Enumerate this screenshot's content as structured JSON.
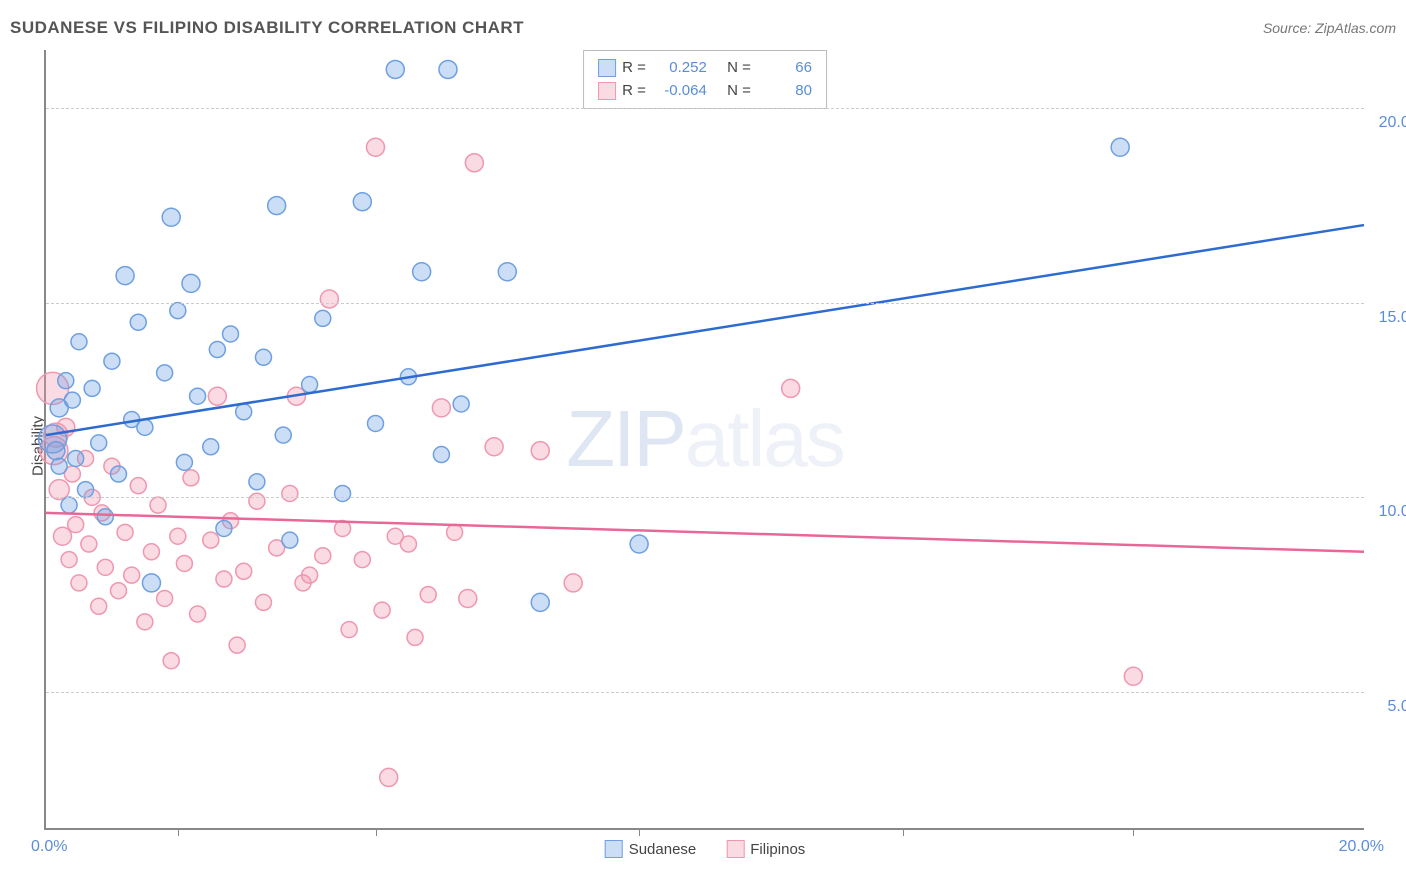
{
  "header": {
    "title": "SUDANESE VS FILIPINO DISABILITY CORRELATION CHART",
    "source_prefix": "Source: ",
    "source": "ZipAtlas.com"
  },
  "watermark": {
    "zip": "ZIP",
    "atlas": "atlas"
  },
  "axes": {
    "ylabel": "Disability",
    "x_min": 0.0,
    "x_max": 20.0,
    "y_min": 1.5,
    "y_max": 21.5,
    "x_origin_label": "0.0%",
    "x_max_label": "20.0%",
    "y_ticks": [
      {
        "v": 5.0,
        "label": "5.0%"
      },
      {
        "v": 10.0,
        "label": "10.0%"
      },
      {
        "v": 15.0,
        "label": "15.0%"
      },
      {
        "v": 20.0,
        "label": "20.0%"
      }
    ],
    "x_tick_positions": [
      2.0,
      5.0,
      9.0,
      13.0,
      16.5
    ],
    "grid_color": "#cccccc"
  },
  "series": {
    "sudanese": {
      "label": "Sudanese",
      "fill": "rgba(110,160,225,0.35)",
      "stroke": "#6ea0e1",
      "line_color": "#2e6bd0",
      "R": "0.252",
      "N": "66",
      "trend": {
        "x1": 0.0,
        "y1": 11.6,
        "x2": 20.0,
        "y2": 17.0
      },
      "points": [
        {
          "x": 0.1,
          "y": 11.5,
          "r": 14
        },
        {
          "x": 0.15,
          "y": 11.2,
          "r": 9
        },
        {
          "x": 0.2,
          "y": 12.3,
          "r": 9
        },
        {
          "x": 0.2,
          "y": 10.8,
          "r": 8
        },
        {
          "x": 0.3,
          "y": 13.0,
          "r": 8
        },
        {
          "x": 0.35,
          "y": 9.8,
          "r": 8
        },
        {
          "x": 0.4,
          "y": 12.5,
          "r": 8
        },
        {
          "x": 0.45,
          "y": 11.0,
          "r": 8
        },
        {
          "x": 0.5,
          "y": 14.0,
          "r": 8
        },
        {
          "x": 0.6,
          "y": 10.2,
          "r": 8
        },
        {
          "x": 0.7,
          "y": 12.8,
          "r": 8
        },
        {
          "x": 0.8,
          "y": 11.4,
          "r": 8
        },
        {
          "x": 0.9,
          "y": 9.5,
          "r": 8
        },
        {
          "x": 1.0,
          "y": 13.5,
          "r": 8
        },
        {
          "x": 1.1,
          "y": 10.6,
          "r": 8
        },
        {
          "x": 1.2,
          "y": 15.7,
          "r": 9
        },
        {
          "x": 1.3,
          "y": 12.0,
          "r": 8
        },
        {
          "x": 1.4,
          "y": 14.5,
          "r": 8
        },
        {
          "x": 1.5,
          "y": 11.8,
          "r": 8
        },
        {
          "x": 1.6,
          "y": 7.8,
          "r": 9
        },
        {
          "x": 1.8,
          "y": 13.2,
          "r": 8
        },
        {
          "x": 1.9,
          "y": 17.2,
          "r": 9
        },
        {
          "x": 2.0,
          "y": 14.8,
          "r": 8
        },
        {
          "x": 2.1,
          "y": 10.9,
          "r": 8
        },
        {
          "x": 2.2,
          "y": 15.5,
          "r": 9
        },
        {
          "x": 2.3,
          "y": 12.6,
          "r": 8
        },
        {
          "x": 2.5,
          "y": 11.3,
          "r": 8
        },
        {
          "x": 2.6,
          "y": 13.8,
          "r": 8
        },
        {
          "x": 2.7,
          "y": 9.2,
          "r": 8
        },
        {
          "x": 2.8,
          "y": 14.2,
          "r": 8
        },
        {
          "x": 3.0,
          "y": 12.2,
          "r": 8
        },
        {
          "x": 3.2,
          "y": 10.4,
          "r": 8
        },
        {
          "x": 3.3,
          "y": 13.6,
          "r": 8
        },
        {
          "x": 3.5,
          "y": 17.5,
          "r": 9
        },
        {
          "x": 3.6,
          "y": 11.6,
          "r": 8
        },
        {
          "x": 3.7,
          "y": 8.9,
          "r": 8
        },
        {
          "x": 4.0,
          "y": 12.9,
          "r": 8
        },
        {
          "x": 4.2,
          "y": 14.6,
          "r": 8
        },
        {
          "x": 4.5,
          "y": 10.1,
          "r": 8
        },
        {
          "x": 4.8,
          "y": 17.6,
          "r": 9
        },
        {
          "x": 5.0,
          "y": 11.9,
          "r": 8
        },
        {
          "x": 5.3,
          "y": 21.0,
          "r": 9
        },
        {
          "x": 5.5,
          "y": 13.1,
          "r": 8
        },
        {
          "x": 5.7,
          "y": 15.8,
          "r": 9
        },
        {
          "x": 6.0,
          "y": 11.1,
          "r": 8
        },
        {
          "x": 6.1,
          "y": 21.0,
          "r": 9
        },
        {
          "x": 6.3,
          "y": 12.4,
          "r": 8
        },
        {
          "x": 7.0,
          "y": 15.8,
          "r": 9
        },
        {
          "x": 7.5,
          "y": 7.3,
          "r": 9
        },
        {
          "x": 9.0,
          "y": 8.8,
          "r": 9
        },
        {
          "x": 16.3,
          "y": 19.0,
          "r": 9
        }
      ]
    },
    "filipinos": {
      "label": "Filipinos",
      "fill": "rgba(240,150,175,0.35)",
      "stroke": "#ef97af",
      "line_color": "#e76897",
      "R": "-0.064",
      "N": "80",
      "trend": {
        "x1": 0.0,
        "y1": 9.6,
        "x2": 20.0,
        "y2": 8.6
      },
      "points": [
        {
          "x": 0.1,
          "y": 12.8,
          "r": 16
        },
        {
          "x": 0.12,
          "y": 11.2,
          "r": 14
        },
        {
          "x": 0.15,
          "y": 11.6,
          "r": 12
        },
        {
          "x": 0.2,
          "y": 10.2,
          "r": 10
        },
        {
          "x": 0.25,
          "y": 9.0,
          "r": 9
        },
        {
          "x": 0.3,
          "y": 11.8,
          "r": 9
        },
        {
          "x": 0.35,
          "y": 8.4,
          "r": 8
        },
        {
          "x": 0.4,
          "y": 10.6,
          "r": 8
        },
        {
          "x": 0.45,
          "y": 9.3,
          "r": 8
        },
        {
          "x": 0.5,
          "y": 7.8,
          "r": 8
        },
        {
          "x": 0.6,
          "y": 11.0,
          "r": 8
        },
        {
          "x": 0.65,
          "y": 8.8,
          "r": 8
        },
        {
          "x": 0.7,
          "y": 10.0,
          "r": 8
        },
        {
          "x": 0.8,
          "y": 7.2,
          "r": 8
        },
        {
          "x": 0.85,
          "y": 9.6,
          "r": 8
        },
        {
          "x": 0.9,
          "y": 8.2,
          "r": 8
        },
        {
          "x": 1.0,
          "y": 10.8,
          "r": 8
        },
        {
          "x": 1.1,
          "y": 7.6,
          "r": 8
        },
        {
          "x": 1.2,
          "y": 9.1,
          "r": 8
        },
        {
          "x": 1.3,
          "y": 8.0,
          "r": 8
        },
        {
          "x": 1.4,
          "y": 10.3,
          "r": 8
        },
        {
          "x": 1.5,
          "y": 6.8,
          "r": 8
        },
        {
          "x": 1.6,
          "y": 8.6,
          "r": 8
        },
        {
          "x": 1.7,
          "y": 9.8,
          "r": 8
        },
        {
          "x": 1.8,
          "y": 7.4,
          "r": 8
        },
        {
          "x": 1.9,
          "y": 5.8,
          "r": 8
        },
        {
          "x": 2.0,
          "y": 9.0,
          "r": 8
        },
        {
          "x": 2.1,
          "y": 8.3,
          "r": 8
        },
        {
          "x": 2.2,
          "y": 10.5,
          "r": 8
        },
        {
          "x": 2.3,
          "y": 7.0,
          "r": 8
        },
        {
          "x": 2.5,
          "y": 8.9,
          "r": 8
        },
        {
          "x": 2.6,
          "y": 12.6,
          "r": 9
        },
        {
          "x": 2.7,
          "y": 7.9,
          "r": 8
        },
        {
          "x": 2.8,
          "y": 9.4,
          "r": 8
        },
        {
          "x": 2.9,
          "y": 6.2,
          "r": 8
        },
        {
          "x": 3.0,
          "y": 8.1,
          "r": 8
        },
        {
          "x": 3.2,
          "y": 9.9,
          "r": 8
        },
        {
          "x": 3.3,
          "y": 7.3,
          "r": 8
        },
        {
          "x": 3.5,
          "y": 8.7,
          "r": 8
        },
        {
          "x": 3.7,
          "y": 10.1,
          "r": 8
        },
        {
          "x": 3.8,
          "y": 12.6,
          "r": 9
        },
        {
          "x": 3.9,
          "y": 7.8,
          "r": 8
        },
        {
          "x": 4.0,
          "y": 8.0,
          "r": 8
        },
        {
          "x": 4.2,
          "y": 8.5,
          "r": 8
        },
        {
          "x": 4.3,
          "y": 15.1,
          "r": 9
        },
        {
          "x": 4.5,
          "y": 9.2,
          "r": 8
        },
        {
          "x": 4.6,
          "y": 6.6,
          "r": 8
        },
        {
          "x": 4.8,
          "y": 8.4,
          "r": 8
        },
        {
          "x": 5.0,
          "y": 19.0,
          "r": 9
        },
        {
          "x": 5.1,
          "y": 7.1,
          "r": 8
        },
        {
          "x": 5.2,
          "y": 2.8,
          "r": 9
        },
        {
          "x": 5.3,
          "y": 9.0,
          "r": 8
        },
        {
          "x": 5.5,
          "y": 8.8,
          "r": 8
        },
        {
          "x": 5.6,
          "y": 6.4,
          "r": 8
        },
        {
          "x": 5.8,
          "y": 7.5,
          "r": 8
        },
        {
          "x": 6.0,
          "y": 12.3,
          "r": 9
        },
        {
          "x": 6.2,
          "y": 9.1,
          "r": 8
        },
        {
          "x": 6.4,
          "y": 7.4,
          "r": 9
        },
        {
          "x": 6.5,
          "y": 18.6,
          "r": 9
        },
        {
          "x": 6.8,
          "y": 11.3,
          "r": 9
        },
        {
          "x": 7.5,
          "y": 11.2,
          "r": 9
        },
        {
          "x": 8.0,
          "y": 7.8,
          "r": 9
        },
        {
          "x": 11.3,
          "y": 12.8,
          "r": 9
        },
        {
          "x": 16.5,
          "y": 5.4,
          "r": 9
        }
      ]
    }
  },
  "legend_top": {
    "r_label": "R =",
    "n_label": "N ="
  }
}
